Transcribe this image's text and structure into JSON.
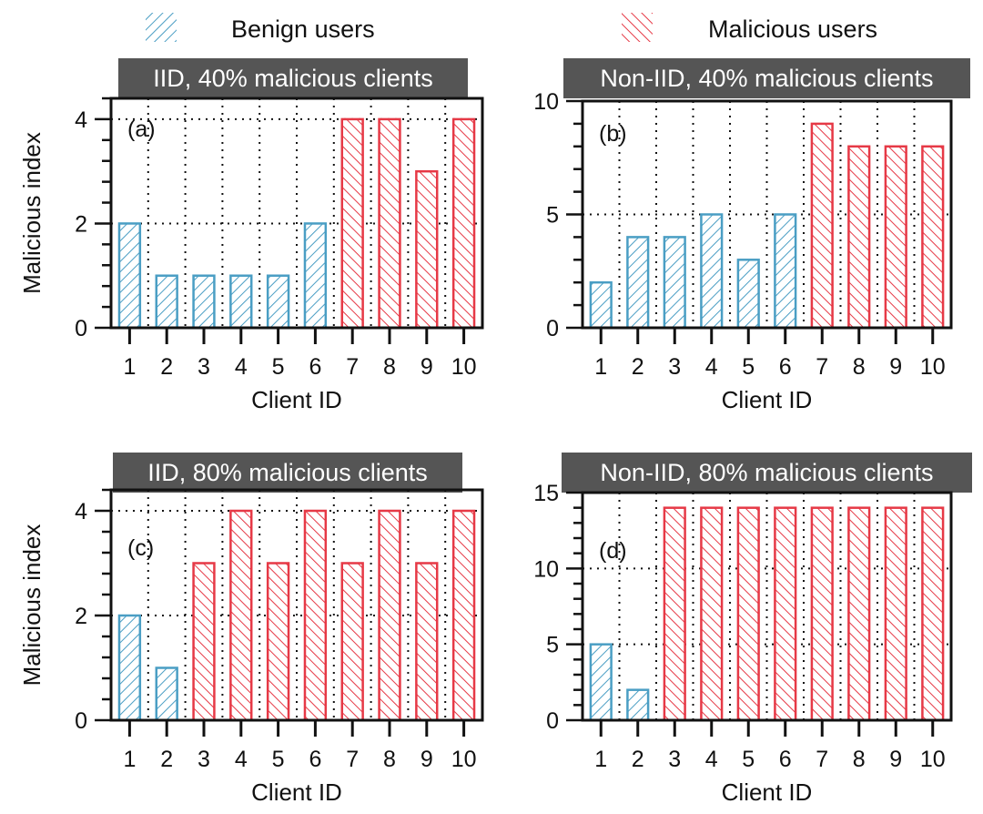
{
  "legend": {
    "position": "top",
    "items": [
      {
        "label": "Benign users",
        "color": "#4a9ec4"
      },
      {
        "label": "Malicious users",
        "color": "#e63946"
      }
    ]
  },
  "colors": {
    "benign": "#4a9ec4",
    "malicious": "#e63946",
    "title_bg": "#555555",
    "title_text": "#ffffff"
  },
  "chart_data": [
    {
      "type": "bar",
      "title": "IID, 40% malicious clients",
      "panel_label": "(a)",
      "xlabel": "Client ID",
      "ylabel": "Malicious index",
      "categories": [
        "1",
        "2",
        "3",
        "4",
        "5",
        "6",
        "7",
        "8",
        "9",
        "10"
      ],
      "values": [
        2,
        1,
        1,
        1,
        1,
        2,
        4,
        4,
        3,
        4
      ],
      "classes": [
        "benign",
        "benign",
        "benign",
        "benign",
        "benign",
        "benign",
        "malicious",
        "malicious",
        "malicious",
        "malicious"
      ],
      "ylim": [
        0,
        4.4
      ],
      "yticks": [
        0,
        2,
        4
      ],
      "grid": true
    },
    {
      "type": "bar",
      "title": "Non-IID, 40% malicious clients",
      "panel_label": "(b)",
      "xlabel": "Client ID",
      "ylabel": "",
      "categories": [
        "1",
        "2",
        "3",
        "4",
        "5",
        "6",
        "7",
        "8",
        "9",
        "10"
      ],
      "values": [
        2,
        4,
        4,
        5,
        3,
        5,
        9,
        8,
        8,
        8
      ],
      "classes": [
        "benign",
        "benign",
        "benign",
        "benign",
        "benign",
        "benign",
        "malicious",
        "malicious",
        "malicious",
        "malicious"
      ],
      "ylim": [
        0,
        10
      ],
      "yticks": [
        0,
        5,
        10
      ],
      "grid": true
    },
    {
      "type": "bar",
      "title": "IID, 80% malicious clients",
      "panel_label": "(c)",
      "xlabel": "Client ID",
      "ylabel": "Malicious index",
      "categories": [
        "1",
        "2",
        "3",
        "4",
        "5",
        "6",
        "7",
        "8",
        "9",
        "10"
      ],
      "values": [
        2,
        1,
        3,
        4,
        3,
        4,
        3,
        4,
        3,
        4
      ],
      "classes": [
        "benign",
        "benign",
        "malicious",
        "malicious",
        "malicious",
        "malicious",
        "malicious",
        "malicious",
        "malicious",
        "malicious"
      ],
      "ylim": [
        0,
        4.4
      ],
      "yticks": [
        0,
        2,
        4
      ],
      "grid": true
    },
    {
      "type": "bar",
      "title": "Non-IID, 80% malicious clients",
      "panel_label": "(d)",
      "xlabel": "Client ID",
      "ylabel": "",
      "categories": [
        "1",
        "2",
        "3",
        "4",
        "5",
        "6",
        "7",
        "8",
        "9",
        "10"
      ],
      "values": [
        5,
        2,
        14,
        14,
        14,
        14,
        14,
        14,
        14,
        14
      ],
      "classes": [
        "benign",
        "benign",
        "malicious",
        "malicious",
        "malicious",
        "malicious",
        "malicious",
        "malicious",
        "malicious",
        "malicious"
      ],
      "ylim": [
        0,
        15
      ],
      "yticks": [
        0,
        5,
        10,
        15
      ],
      "grid": true
    }
  ]
}
